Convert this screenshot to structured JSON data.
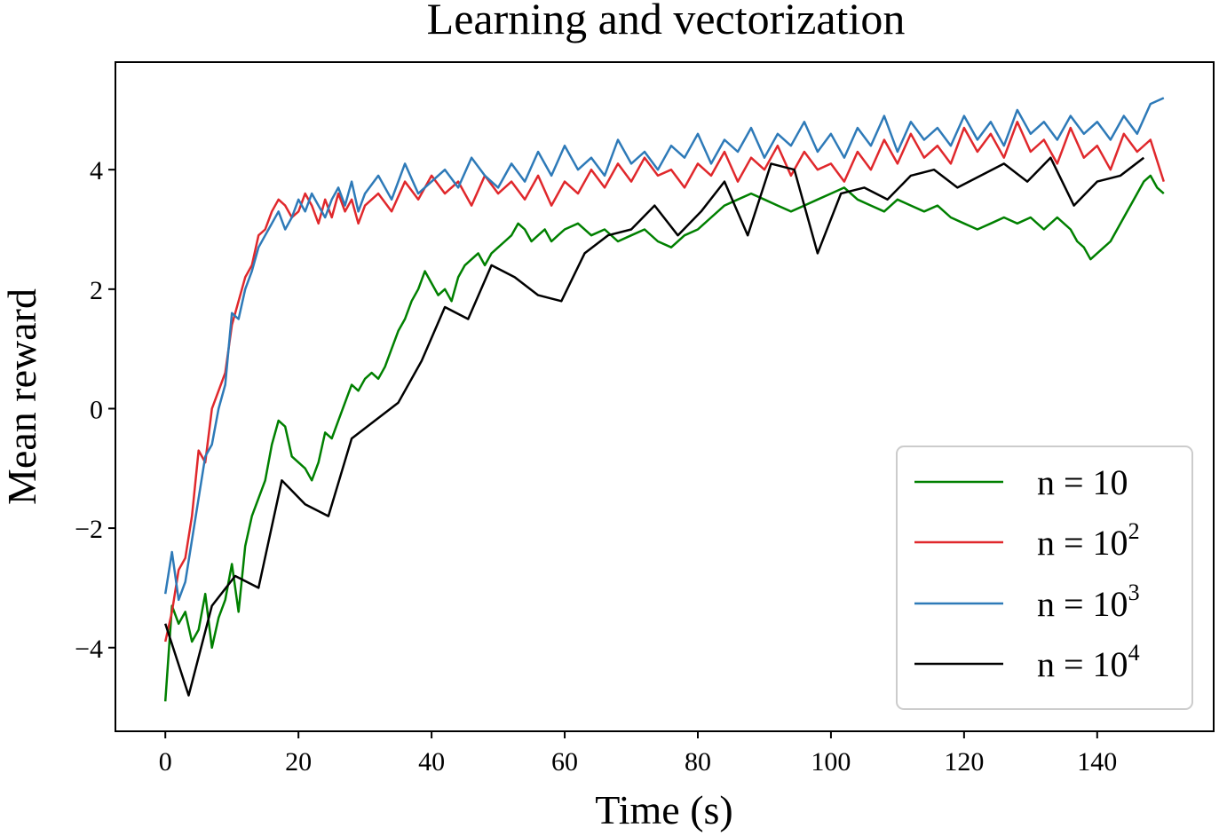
{
  "chart_data": {
    "type": "line",
    "title": "Learning and vectorization",
    "xlabel": "Time (s)",
    "ylabel": "Mean reward",
    "xlim": [
      -7.5,
      157.5
    ],
    "ylim": [
      -5.4,
      5.8
    ],
    "xticks": [
      0,
      20,
      40,
      60,
      80,
      100,
      120,
      140
    ],
    "yticks": [
      -4,
      -2,
      0,
      2,
      4
    ],
    "ytick_labels": [
      "−4",
      "−2",
      "0",
      "2",
      "4"
    ],
    "grid": false,
    "legend_position": "lower-right",
    "series": [
      {
        "name": "n = 10",
        "label_base": "n = 10",
        "label_sup": "",
        "color": "#008000",
        "x": [
          0,
          1,
          2,
          3,
          4,
          5,
          6,
          7,
          8,
          9,
          10,
          11,
          12,
          13,
          14,
          15,
          16,
          17,
          18,
          19,
          20,
          21,
          22,
          23,
          24,
          25,
          26,
          27,
          28,
          29,
          30,
          31,
          32,
          33,
          34,
          35,
          36,
          37,
          38,
          39,
          40,
          41,
          42,
          43,
          44,
          45,
          46,
          47,
          48,
          49,
          50,
          51,
          52,
          53,
          54,
          55,
          56,
          57,
          58,
          59,
          60,
          62,
          64,
          66,
          68,
          70,
          72,
          74,
          76,
          78,
          80,
          82,
          84,
          86,
          88,
          90,
          92,
          94,
          96,
          98,
          100,
          102,
          104,
          106,
          108,
          110,
          112,
          114,
          116,
          118,
          120,
          122,
          124,
          126,
          128,
          130,
          132,
          134,
          136,
          137,
          138,
          139,
          140,
          141,
          142,
          143,
          144,
          145,
          146,
          147,
          148,
          149,
          150
        ],
        "y": [
          -4.9,
          -3.3,
          -3.6,
          -3.4,
          -3.9,
          -3.7,
          -3.1,
          -4.0,
          -3.5,
          -3.2,
          -2.6,
          -3.4,
          -2.3,
          -1.8,
          -1.5,
          -1.2,
          -0.6,
          -0.2,
          -0.3,
          -0.8,
          -0.9,
          -1.0,
          -1.2,
          -0.9,
          -0.4,
          -0.5,
          -0.2,
          0.1,
          0.4,
          0.3,
          0.5,
          0.6,
          0.5,
          0.7,
          1.0,
          1.3,
          1.5,
          1.8,
          2.0,
          2.3,
          2.1,
          1.9,
          2.0,
          1.8,
          2.2,
          2.4,
          2.5,
          2.6,
          2.4,
          2.6,
          2.7,
          2.8,
          2.9,
          3.1,
          3.0,
          2.8,
          2.9,
          3.0,
          2.8,
          2.9,
          3.0,
          3.1,
          2.9,
          3.0,
          2.8,
          2.9,
          3.0,
          2.8,
          2.7,
          2.9,
          3.0,
          3.2,
          3.4,
          3.5,
          3.6,
          3.5,
          3.4,
          3.3,
          3.4,
          3.5,
          3.6,
          3.7,
          3.5,
          3.4,
          3.3,
          3.5,
          3.4,
          3.3,
          3.4,
          3.2,
          3.1,
          3.0,
          3.1,
          3.2,
          3.1,
          3.2,
          3.0,
          3.2,
          3.0,
          2.8,
          2.7,
          2.5,
          2.6,
          2.7,
          2.8,
          3.0,
          3.2,
          3.4,
          3.6,
          3.8,
          3.9,
          3.7,
          3.6
        ]
      },
      {
        "name": "n = 10²",
        "label_base": "n = 10",
        "label_sup": "2",
        "color": "#e0282c",
        "x": [
          0,
          1,
          2,
          3,
          4,
          5,
          6,
          7,
          8,
          9,
          10,
          11,
          12,
          13,
          14,
          15,
          16,
          17,
          18,
          19,
          20,
          21,
          22,
          23,
          24,
          25,
          26,
          27,
          28,
          29,
          30,
          32,
          34,
          36,
          38,
          40,
          42,
          44,
          46,
          48,
          50,
          52,
          54,
          56,
          58,
          60,
          62,
          64,
          66,
          68,
          70,
          72,
          74,
          76,
          78,
          80,
          82,
          84,
          86,
          88,
          90,
          92,
          94,
          96,
          98,
          100,
          102,
          104,
          106,
          108,
          110,
          112,
          114,
          116,
          118,
          120,
          122,
          124,
          126,
          128,
          130,
          132,
          134,
          136,
          138,
          140,
          142,
          144,
          146,
          148,
          150
        ],
        "y": [
          -3.9,
          -3.4,
          -2.7,
          -2.5,
          -1.8,
          -0.7,
          -0.9,
          0.0,
          0.3,
          0.6,
          1.4,
          1.8,
          2.2,
          2.4,
          2.9,
          3.0,
          3.3,
          3.5,
          3.4,
          3.2,
          3.3,
          3.6,
          3.4,
          3.1,
          3.5,
          3.2,
          3.6,
          3.3,
          3.5,
          3.1,
          3.4,
          3.6,
          3.3,
          3.8,
          3.5,
          3.9,
          3.6,
          3.8,
          3.4,
          3.9,
          3.6,
          3.8,
          3.5,
          3.9,
          3.4,
          3.8,
          3.6,
          4.0,
          3.7,
          4.1,
          3.8,
          4.2,
          3.9,
          4.0,
          3.7,
          4.1,
          3.9,
          4.3,
          3.8,
          4.2,
          4.0,
          4.4,
          3.9,
          4.3,
          4.0,
          4.1,
          3.8,
          4.3,
          4.0,
          4.5,
          4.1,
          4.6,
          4.2,
          4.4,
          4.1,
          4.7,
          4.3,
          4.6,
          4.2,
          4.8,
          4.3,
          4.5,
          4.1,
          4.7,
          4.2,
          4.4,
          4.0,
          4.6,
          4.3,
          4.5,
          3.8
        ]
      },
      {
        "name": "n = 10³",
        "label_base": "n = 10",
        "label_sup": "3",
        "color": "#2e7ab8",
        "x": [
          0,
          1,
          2,
          3,
          4,
          5,
          6,
          7,
          8,
          9,
          10,
          11,
          12,
          13,
          14,
          15,
          16,
          17,
          18,
          19,
          20,
          21,
          22,
          23,
          24,
          25,
          26,
          27,
          28,
          29,
          30,
          32,
          34,
          36,
          38,
          40,
          42,
          44,
          46,
          48,
          50,
          52,
          54,
          56,
          58,
          60,
          62,
          64,
          66,
          68,
          70,
          72,
          74,
          76,
          78,
          80,
          82,
          84,
          86,
          88,
          90,
          92,
          94,
          96,
          98,
          100,
          102,
          104,
          106,
          108,
          110,
          112,
          114,
          116,
          118,
          120,
          122,
          124,
          126,
          128,
          130,
          132,
          134,
          136,
          138,
          140,
          142,
          144,
          146,
          148,
          150
        ],
        "y": [
          -3.1,
          -2.4,
          -3.2,
          -2.9,
          -2.2,
          -1.5,
          -0.8,
          -0.6,
          0.0,
          0.4,
          1.6,
          1.5,
          2.0,
          2.3,
          2.7,
          2.9,
          3.1,
          3.3,
          3.0,
          3.2,
          3.5,
          3.3,
          3.6,
          3.4,
          3.2,
          3.5,
          3.7,
          3.4,
          3.8,
          3.3,
          3.6,
          3.9,
          3.5,
          4.1,
          3.6,
          3.8,
          4.0,
          3.7,
          4.2,
          3.9,
          3.7,
          4.1,
          3.8,
          4.3,
          3.9,
          4.4,
          4.0,
          4.2,
          3.9,
          4.5,
          4.1,
          4.3,
          4.0,
          4.4,
          4.2,
          4.6,
          4.1,
          4.5,
          4.3,
          4.7,
          4.2,
          4.6,
          4.4,
          4.8,
          4.3,
          4.6,
          4.2,
          4.7,
          4.4,
          4.9,
          4.3,
          4.8,
          4.5,
          4.7,
          4.4,
          4.9,
          4.5,
          4.8,
          4.4,
          5.0,
          4.6,
          4.8,
          4.5,
          4.9,
          4.6,
          4.8,
          4.5,
          4.9,
          4.6,
          5.1,
          5.2
        ]
      },
      {
        "name": "n = 10⁴",
        "label_base": "n = 10",
        "label_sup": "4",
        "color": "#000000",
        "x": [
          0,
          3.5,
          7,
          10.5,
          14,
          17.5,
          21,
          24.5,
          28,
          31.5,
          35,
          38.5,
          42,
          45.5,
          49,
          52.5,
          56,
          59.5,
          63,
          66.5,
          70,
          73.5,
          77,
          80.5,
          84,
          87.5,
          91,
          94.5,
          98,
          101.5,
          105,
          108.5,
          112,
          115.5,
          119,
          122.5,
          126,
          129.5,
          133,
          136.5,
          140,
          143.5,
          147
        ],
        "y": [
          -3.6,
          -4.8,
          -3.3,
          -2.8,
          -3.0,
          -1.2,
          -1.6,
          -1.8,
          -0.5,
          -0.2,
          0.1,
          0.8,
          1.7,
          1.5,
          2.4,
          2.2,
          1.9,
          1.8,
          2.6,
          2.9,
          3.0,
          3.4,
          2.9,
          3.3,
          3.8,
          2.9,
          4.1,
          4.0,
          2.6,
          3.6,
          3.7,
          3.5,
          3.9,
          4.0,
          3.7,
          3.9,
          4.1,
          3.8,
          4.2,
          3.4,
          3.8,
          3.9,
          4.2
        ]
      }
    ]
  }
}
